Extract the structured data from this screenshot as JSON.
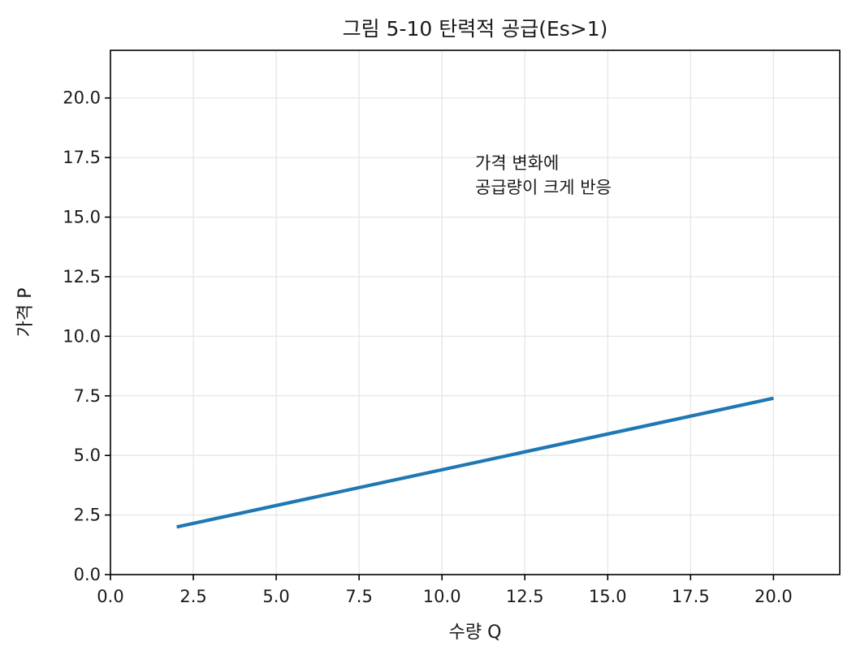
{
  "chart_data": {
    "type": "line",
    "title": "그림 5-10  탄력적 공급(Es>1)",
    "xlabel": "수량 Q",
    "ylabel": "가격 P",
    "xlim": [
      0,
      22
    ],
    "ylim": [
      0,
      22
    ],
    "xticks": [
      0.0,
      2.5,
      5.0,
      7.5,
      10.0,
      12.5,
      15.0,
      17.5,
      20.0
    ],
    "yticks": [
      0.0,
      2.5,
      5.0,
      7.5,
      10.0,
      12.5,
      15.0,
      17.5,
      20.0
    ],
    "xtick_labels": [
      "0.0",
      "2.5",
      "5.0",
      "7.5",
      "10.0",
      "12.5",
      "15.0",
      "17.5",
      "20.0"
    ],
    "ytick_labels": [
      "0.0",
      "2.5",
      "5.0",
      "7.5",
      "10.0",
      "12.5",
      "15.0",
      "17.5",
      "20.0"
    ],
    "grid": true,
    "series": [
      {
        "x": [
          2.0,
          20.0
        ],
        "y": [
          2.0,
          7.4
        ],
        "color": "#1f77b4"
      }
    ],
    "annotation": {
      "lines": [
        "가격 변화에",
        "공급량이 크게 반응"
      ],
      "x": 11.0,
      "y": 16.0
    }
  }
}
